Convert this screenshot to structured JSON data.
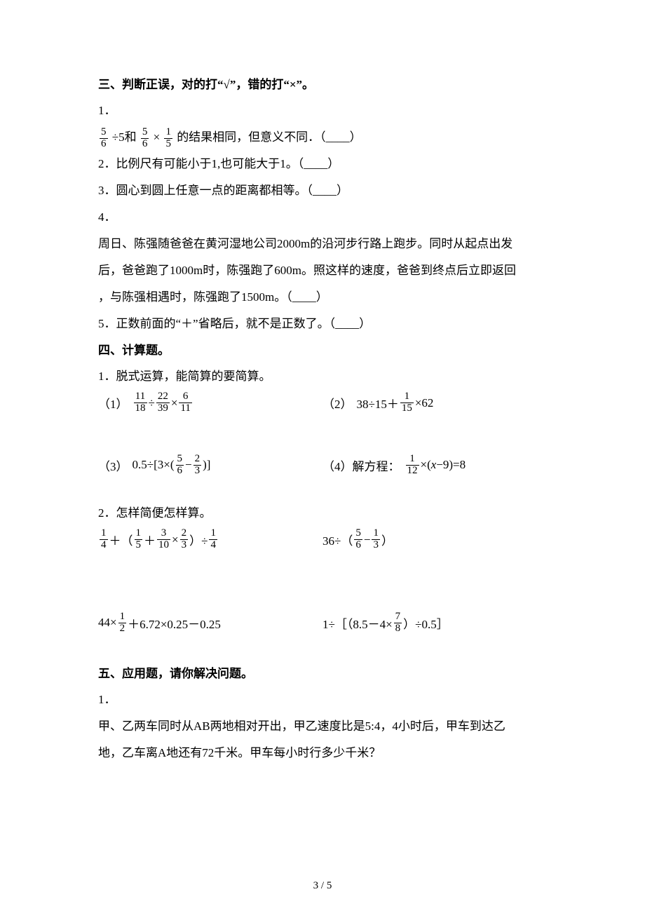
{
  "section3": {
    "header": "三、判断正误，对的打“√”，错的打“×”。",
    "q1_num": "1．",
    "q1_frac1": {
      "n": "5",
      "d": "6"
    },
    "q1_mid1": "÷5和",
    "q1_frac2": {
      "n": "5",
      "d": "6"
    },
    "q1_mid2": "×",
    "q1_frac3": {
      "n": "1",
      "d": "5"
    },
    "q1_tail": "的结果相同，但意义不同．（____）",
    "q2": "2．比例尺有可能小于1,也可能大于1。（____）",
    "q3": "3．圆心到圆上任意一点的距离都相等。（____）",
    "q4_num": "4．",
    "q4_l1": "周日、陈强随爸爸在黄河湿地公司2000m的沿河步行路上跑步。同时从起点出发",
    "q4_l2": "后，爸爸跑了1000m时，陈强跑了600m。照这样的速度，爸爸到终点后立即返回",
    "q4_l3": "，与陈强相遇时，陈强跑了1500m。（____）",
    "q5": "5．正数前面的“＋”省略后，就不是正数了。（____）"
  },
  "section4": {
    "header": "四、计算题。",
    "q1_head": "1．脱式运算，能简算的要简算。",
    "c1_label": "（1）",
    "c1": {
      "f1": {
        "n": "11",
        "d": "18"
      },
      "op1": "÷",
      "f2": {
        "n": "22",
        "d": "39"
      },
      "op2": "×",
      "f3": {
        "n": "6",
        "d": "11"
      }
    },
    "c2_label": "（2）",
    "c2": {
      "pre": "38÷15＋",
      "f": {
        "n": "1",
        "d": "15"
      },
      "post": "×62"
    },
    "c3_label": "（3）",
    "c3": {
      "pre": "0.5÷[3×(",
      "f1": {
        "n": "5",
        "d": "6"
      },
      "mid": "−",
      "f2": {
        "n": "2",
        "d": "3"
      },
      "post": ")]"
    },
    "c4_label": "（4）解方程：",
    "c4": {
      "f": {
        "n": "1",
        "d": "12"
      },
      "post": "×(x−9)=8"
    },
    "q2_head": "2．怎样简便怎样算。",
    "d1": {
      "f1": {
        "n": "1",
        "d": "4"
      },
      "p1": "＋（",
      "f2": {
        "n": "1",
        "d": "5"
      },
      "p2": "＋",
      "f3": {
        "n": "3",
        "d": "10"
      },
      "p3": "×",
      "f4": {
        "n": "2",
        "d": "3"
      },
      "p4": "）÷",
      "f5": {
        "n": "1",
        "d": "4"
      }
    },
    "d2": {
      "pre": "36÷（",
      "f1": {
        "n": "5",
        "d": "6"
      },
      "mid": "−",
      "f2": {
        "n": "1",
        "d": "3"
      },
      "post": "）"
    },
    "d3": {
      "pre": "44×",
      "f": {
        "n": "1",
        "d": "2"
      },
      "post": "＋6.72×0.25－0.25"
    },
    "d4": {
      "pre": "1÷［（8.5－4×",
      "f": {
        "n": "7",
        "d": "8"
      },
      "post": "）÷0.5］"
    }
  },
  "section5": {
    "header": "五、应用题，请你解决问题。",
    "q1_num": "1．",
    "q1_l1": "甲、乙两车同时从AB两地相对开出，甲乙速度比是5:4，4小时后，甲车到达乙",
    "q1_l2": "地，乙车离A地还有72千米。甲车每小时行多少千米？"
  },
  "pagenum": "3 / 5"
}
